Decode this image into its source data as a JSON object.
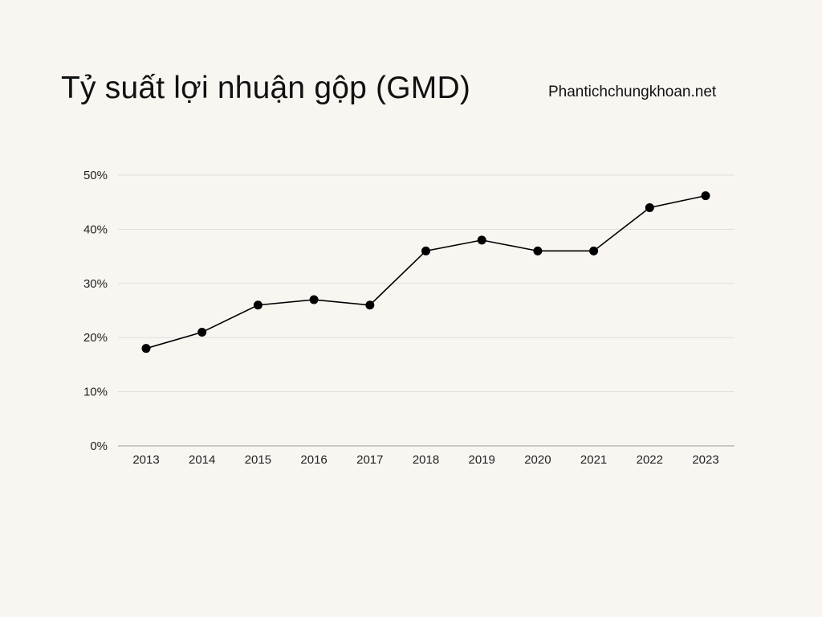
{
  "title": "Tỷ suất lợi nhuận gộp (GMD)",
  "source": "Phantichchungkhoan.net",
  "colors": {
    "background": "#f9f6f2",
    "line": "#000000",
    "grid": "#dddddd",
    "text": "#111111"
  },
  "chart_data": {
    "type": "line",
    "title": "Tỷ suất lợi nhuận gộp (GMD)",
    "xlabel": "",
    "ylabel": "",
    "categories": [
      "2013",
      "2014",
      "2015",
      "2016",
      "2017",
      "2018",
      "2019",
      "2020",
      "2021",
      "2022",
      "2023"
    ],
    "series": [
      {
        "values": [
          18,
          21,
          26,
          27,
          26,
          36,
          38,
          36,
          36,
          44,
          46.2
        ]
      }
    ],
    "ylim": [
      0,
      50
    ],
    "yticks": [
      0,
      10,
      20,
      30,
      40,
      50
    ],
    "ytick_labels": [
      "0%",
      "10%",
      "20%",
      "30%",
      "40%",
      "50%"
    ],
    "grid": true,
    "markers": true,
    "legend": "none"
  }
}
